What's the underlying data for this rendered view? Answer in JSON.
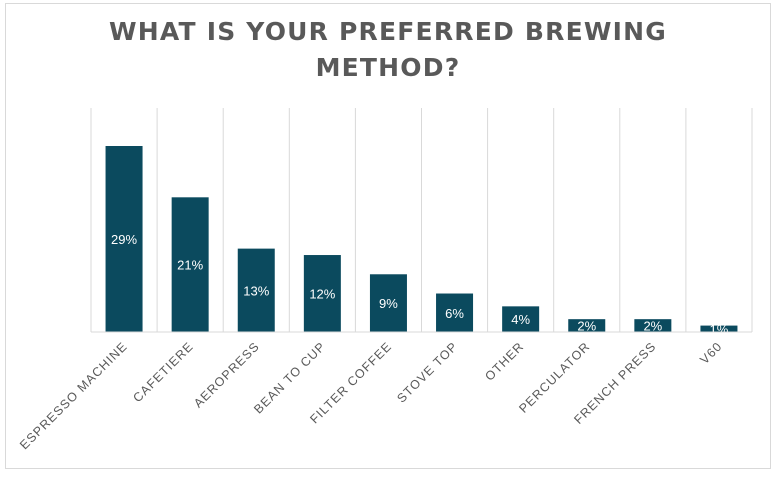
{
  "chart_data": {
    "type": "bar",
    "title_lines": [
      "WHAT IS YOUR PREFERRED BREWING",
      "METHOD?"
    ],
    "categories": [
      "ESPRESSO MACHINE",
      "CAFETIERE",
      "AEROPRESS",
      "BEAN TO CUP",
      "FILTER COFFEE",
      "STOVE TOP",
      "OTHER",
      "PERCULATOR",
      "FRENCH PRESS",
      "V60"
    ],
    "values": [
      29,
      21,
      13,
      12,
      9,
      6,
      4,
      2,
      2,
      1
    ],
    "value_labels": [
      "29%",
      "21%",
      "13%",
      "12%",
      "9%",
      "6%",
      "4%",
      "2%",
      "2%",
      "1%"
    ],
    "ylim": [
      0,
      30
    ],
    "grid": "vertical",
    "legend": "none",
    "bar_color": "#0b4a5e",
    "grid_color": "#d9d9d9"
  }
}
